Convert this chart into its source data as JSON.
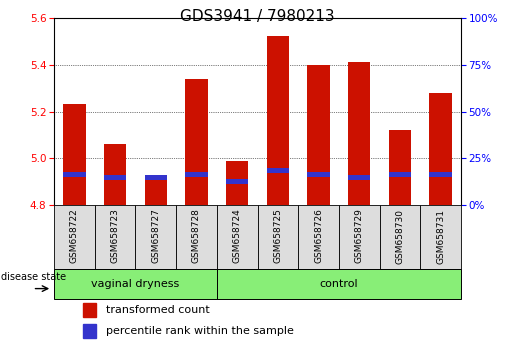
{
  "title": "GDS3941 / 7980213",
  "samples": [
    "GSM658722",
    "GSM658723",
    "GSM658727",
    "GSM658728",
    "GSM658724",
    "GSM658725",
    "GSM658726",
    "GSM658729",
    "GSM658730",
    "GSM658731"
  ],
  "transformed_count": [
    5.23,
    5.06,
    4.93,
    5.34,
    4.99,
    5.52,
    5.4,
    5.41,
    5.12,
    5.28
  ],
  "percentile_rank": [
    4.93,
    4.92,
    4.92,
    4.93,
    4.9,
    4.95,
    4.93,
    4.92,
    4.93,
    4.93
  ],
  "bar_bottom": 4.8,
  "ymin": 4.8,
  "ymax": 5.6,
  "yticks_left": [
    4.8,
    5.0,
    5.2,
    5.4,
    5.6
  ],
  "yticks_right": [
    0,
    25,
    50,
    75,
    100
  ],
  "bar_color": "#cc1100",
  "blue_color": "#3333cc",
  "bar_width": 0.55,
  "groups": [
    {
      "label": "vaginal dryness",
      "start": 0,
      "end": 4
    },
    {
      "label": "control",
      "start": 4,
      "end": 10
    }
  ],
  "group_bg_color": "#88ee77",
  "disease_label": "disease state",
  "legend_items": [
    {
      "color": "#cc1100",
      "label": "transformed count"
    },
    {
      "color": "#3333cc",
      "label": "percentile rank within the sample"
    }
  ],
  "background_color": "#ffffff",
  "plot_bg_color": "#ffffff",
  "title_fontsize": 11,
  "tick_fontsize": 7.5,
  "sample_box_color": "#dddddd"
}
